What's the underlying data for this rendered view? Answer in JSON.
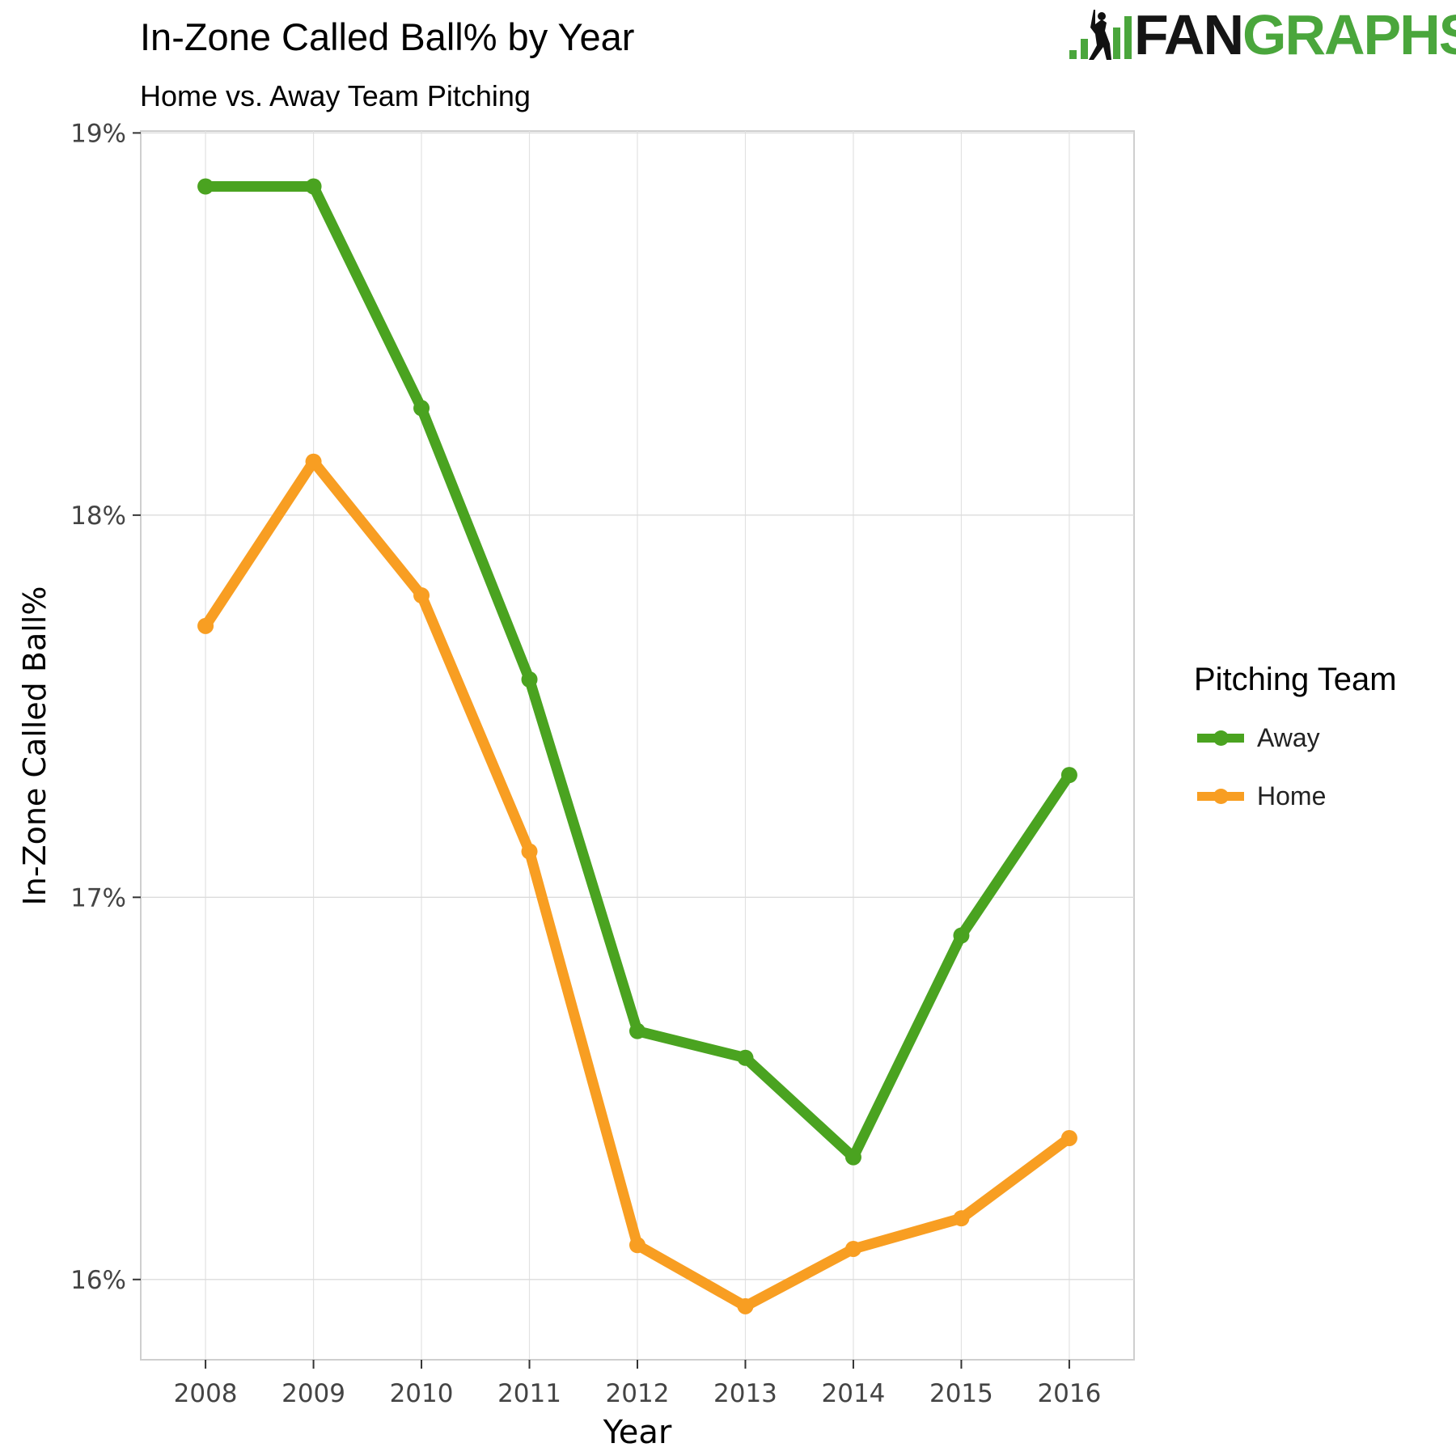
{
  "header": {
    "title": "In-Zone Called Ball% by Year",
    "subtitle": "Home vs. Away Team Pitching"
  },
  "logo": {
    "text_dark": "FAN",
    "text_green": "GRAPHS",
    "icon": "batter-bars-icon"
  },
  "colors": {
    "away": "#4aa320",
    "home": "#f89e22",
    "grid": "#dedede",
    "panel_border": "#cfcfcf",
    "logo_green": "#4aa63c"
  },
  "chart_data": {
    "type": "line",
    "title": "In-Zone Called Ball% by Year",
    "subtitle": "Home vs. Away Team Pitching",
    "xlabel": "Year",
    "ylabel": "In-Zone Called Ball%",
    "x": [
      2008,
      2009,
      2010,
      2011,
      2012,
      2013,
      2014,
      2015,
      2016
    ],
    "x_tick_labels": [
      "2008",
      "2009",
      "2010",
      "2011",
      "2012",
      "2013",
      "2014",
      "2015",
      "2016"
    ],
    "y_ticks": [
      16,
      17,
      18,
      19
    ],
    "y_tick_labels": [
      "16%",
      "17%",
      "18%",
      "19%"
    ],
    "ylim": [
      15.79,
      19.005
    ],
    "xlim": [
      2007.4,
      2016.6
    ],
    "grid": true,
    "legend": {
      "title": "Pitching Team",
      "placement": "right"
    },
    "series": [
      {
        "name": "Away",
        "values": [
          18.86,
          18.86,
          18.28,
          17.57,
          16.65,
          16.58,
          16.32,
          16.9,
          17.32
        ]
      },
      {
        "name": "Home",
        "values": [
          17.71,
          18.14,
          17.79,
          17.12,
          16.09,
          15.93,
          16.08,
          16.16,
          16.37
        ]
      }
    ]
  }
}
